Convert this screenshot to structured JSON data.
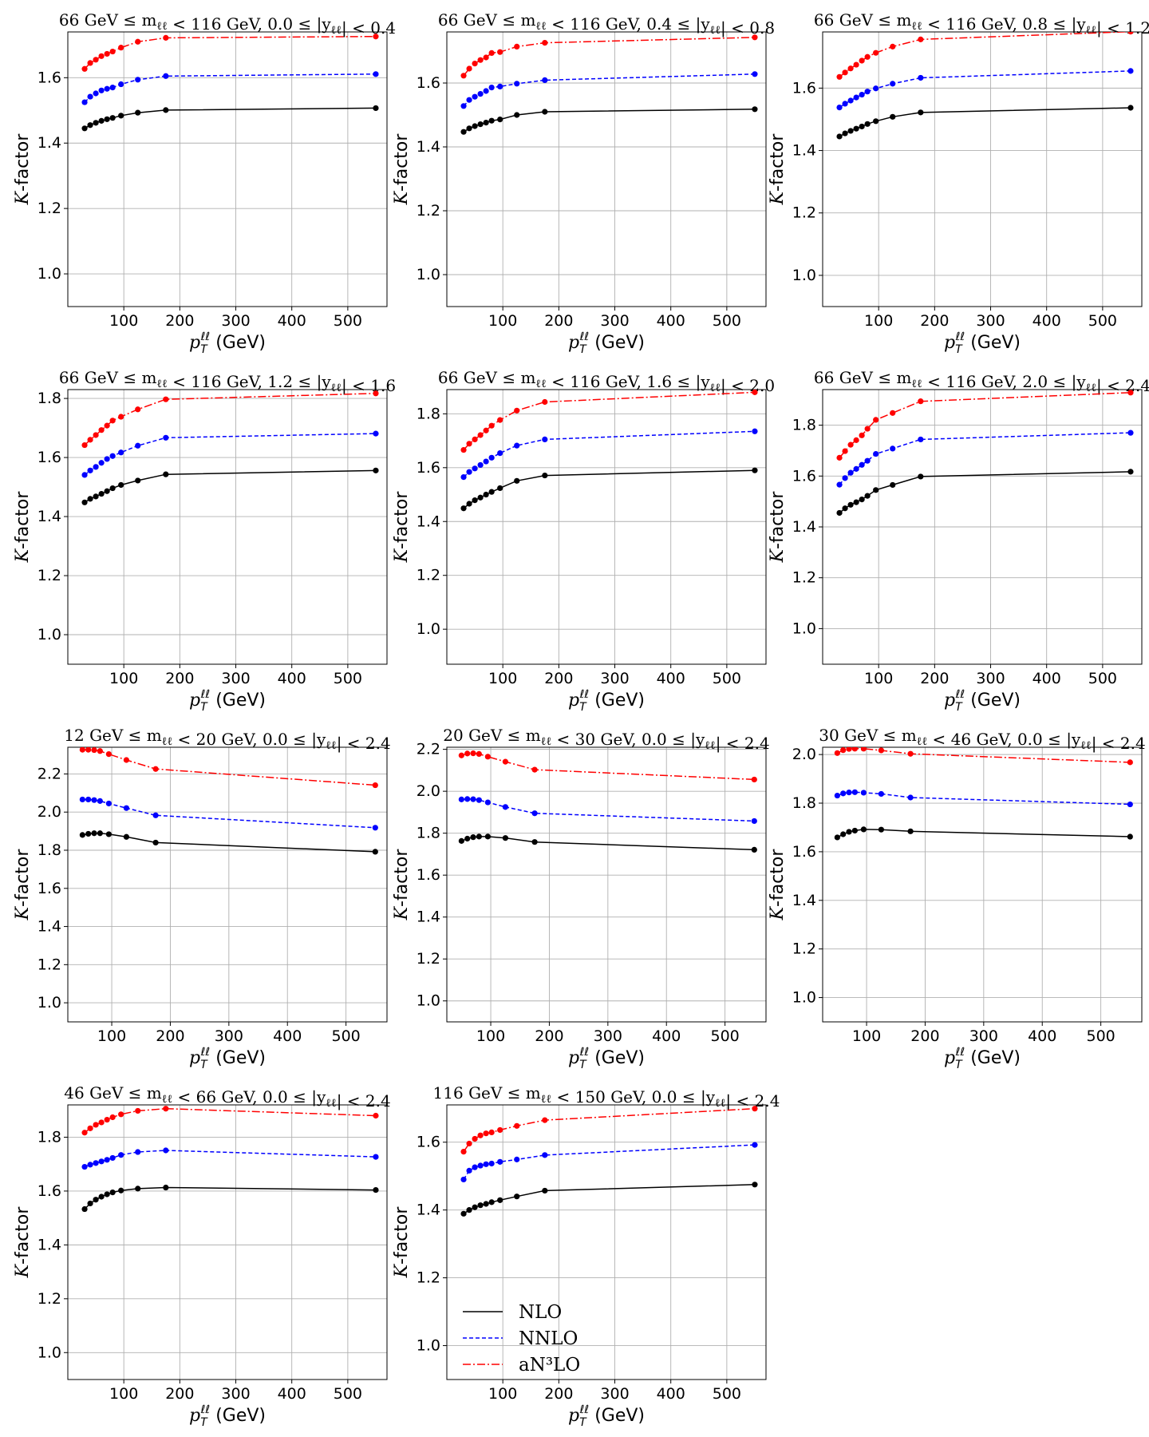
{
  "figure": {
    "xlabel": "p_T^ℓℓ (GeV)",
    "ylabel": "K-factor",
    "legend": {
      "placement": "lower-left of panel 11",
      "entries": [
        {
          "label": "NLO",
          "color": "#000000",
          "style": "solid"
        },
        {
          "label": "NNLO",
          "color": "#0000ff",
          "style": "dashed"
        },
        {
          "label": "aN³LO",
          "color": "#ff0000",
          "style": "dashdot"
        }
      ]
    },
    "colors": {
      "NLO": "#000000",
      "NNLO": "#0000ff",
      "aN3LO": "#ff0000",
      "grid": "#b0b0b0"
    }
  },
  "chart_data": [
    {
      "type": "line",
      "title": "66 GeV ≤ m_ℓℓ < 116 GeV,  0.0 ≤ |y_ℓℓ| < 0.4",
      "xlabel": "p_T^ℓℓ (GeV)",
      "ylabel": "K-factor",
      "grid": true,
      "xlim": [
        0,
        570
      ],
      "ylim": [
        0.9,
        1.74
      ],
      "xticks": [
        100,
        200,
        300,
        400,
        500
      ],
      "yticks": [
        1.0,
        1.2,
        1.4,
        1.6
      ],
      "x": [
        30,
        40,
        50,
        60,
        70,
        80,
        95,
        125,
        175,
        550
      ],
      "series": [
        {
          "name": "NLO",
          "values": [
            1.445,
            1.455,
            1.462,
            1.468,
            1.473,
            1.477,
            1.484,
            1.493,
            1.501,
            1.507
          ]
        },
        {
          "name": "NNLO",
          "values": [
            1.525,
            1.542,
            1.552,
            1.561,
            1.566,
            1.57,
            1.58,
            1.594,
            1.605,
            1.611
          ]
        },
        {
          "name": "aN³LO",
          "values": [
            1.627,
            1.645,
            1.655,
            1.666,
            1.673,
            1.68,
            1.692,
            1.71,
            1.722,
            1.726
          ]
        }
      ]
    },
    {
      "type": "line",
      "title": "66 GeV ≤ m_ℓℓ < 116 GeV,  0.4 ≤ |y_ℓℓ| < 0.8",
      "xlabel": "p_T^ℓℓ (GeV)",
      "ylabel": "K-factor",
      "grid": true,
      "xlim": [
        0,
        570
      ],
      "ylim": [
        0.9,
        1.76
      ],
      "xticks": [
        100,
        200,
        300,
        400,
        500
      ],
      "yticks": [
        1.0,
        1.2,
        1.4,
        1.6
      ],
      "x": [
        30,
        40,
        50,
        60,
        70,
        80,
        95,
        125,
        175,
        550
      ],
      "series": [
        {
          "name": "NLO",
          "values": [
            1.447,
            1.458,
            1.465,
            1.471,
            1.476,
            1.482,
            1.486,
            1.5,
            1.51,
            1.518
          ]
        },
        {
          "name": "NNLO",
          "values": [
            1.528,
            1.547,
            1.557,
            1.566,
            1.575,
            1.586,
            1.589,
            1.598,
            1.609,
            1.628
          ]
        },
        {
          "name": "aN³LO",
          "values": [
            1.623,
            1.645,
            1.661,
            1.672,
            1.68,
            1.694,
            1.697,
            1.714,
            1.726,
            1.743
          ]
        }
      ]
    },
    {
      "type": "line",
      "title": "66 GeV ≤ m_ℓℓ < 116 GeV,  0.8 ≤ |y_ℓℓ| < 1.2",
      "xlabel": "p_T^ℓℓ (GeV)",
      "ylabel": "K-factor",
      "grid": true,
      "xlim": [
        0,
        570
      ],
      "ylim": [
        0.9,
        1.78
      ],
      "xticks": [
        100,
        200,
        300,
        400,
        500
      ],
      "yticks": [
        1.0,
        1.2,
        1.4,
        1.6
      ],
      "x": [
        30,
        40,
        50,
        60,
        70,
        80,
        95,
        125,
        175,
        550
      ],
      "series": [
        {
          "name": "NLO",
          "values": [
            1.445,
            1.455,
            1.463,
            1.47,
            1.477,
            1.485,
            1.494,
            1.508,
            1.522,
            1.537
          ]
        },
        {
          "name": "NNLO",
          "values": [
            1.538,
            1.55,
            1.56,
            1.57,
            1.579,
            1.589,
            1.599,
            1.614,
            1.633,
            1.655
          ]
        },
        {
          "name": "aN³LO",
          "values": [
            1.636,
            1.65,
            1.663,
            1.675,
            1.688,
            1.7,
            1.713,
            1.733,
            1.756,
            1.781
          ]
        }
      ]
    },
    {
      "type": "line",
      "title": "66 GeV ≤ m_ℓℓ < 116 GeV,  1.2 ≤ |y_ℓℓ| < 1.6",
      "xlabel": "p_T^ℓℓ (GeV)",
      "ylabel": "K-factor",
      "grid": true,
      "xlim": [
        0,
        570
      ],
      "ylim": [
        0.9,
        1.83
      ],
      "xticks": [
        100,
        200,
        300,
        400,
        500
      ],
      "yticks": [
        1.0,
        1.2,
        1.4,
        1.6,
        1.8
      ],
      "x": [
        30,
        40,
        50,
        60,
        70,
        80,
        95,
        125,
        175,
        550
      ],
      "series": [
        {
          "name": "NLO",
          "values": [
            1.448,
            1.46,
            1.468,
            1.477,
            1.486,
            1.496,
            1.507,
            1.522,
            1.543,
            1.556
          ]
        },
        {
          "name": "NNLO",
          "values": [
            1.541,
            1.556,
            1.568,
            1.582,
            1.595,
            1.605,
            1.617,
            1.64,
            1.667,
            1.681
          ]
        },
        {
          "name": "aN³LO",
          "values": [
            1.642,
            1.66,
            1.676,
            1.693,
            1.708,
            1.725,
            1.738,
            1.763,
            1.797,
            1.817
          ]
        }
      ]
    },
    {
      "type": "line",
      "title": "66 GeV ≤ m_ℓℓ < 116 GeV,  1.6 ≤ |y_ℓℓ| < 2.0",
      "xlabel": "p_T^ℓℓ (GeV)",
      "ylabel": "K-factor",
      "grid": true,
      "xlim": [
        0,
        570
      ],
      "ylim": [
        0.87,
        1.89
      ],
      "xticks": [
        100,
        200,
        300,
        400,
        500
      ],
      "yticks": [
        1.0,
        1.2,
        1.4,
        1.6,
        1.8
      ],
      "x": [
        30,
        40,
        50,
        60,
        70,
        80,
        95,
        125,
        175,
        550
      ],
      "series": [
        {
          "name": "NLO",
          "values": [
            1.449,
            1.466,
            1.479,
            1.489,
            1.5,
            1.51,
            1.524,
            1.551,
            1.571,
            1.59
          ]
        },
        {
          "name": "NNLO",
          "values": [
            1.565,
            1.584,
            1.597,
            1.61,
            1.623,
            1.637,
            1.654,
            1.682,
            1.705,
            1.735
          ]
        },
        {
          "name": "aN³LO",
          "values": [
            1.666,
            1.689,
            1.705,
            1.721,
            1.738,
            1.756,
            1.777,
            1.812,
            1.844,
            1.88
          ]
        }
      ]
    },
    {
      "type": "line",
      "title": "66 GeV ≤ m_ℓℓ < 116 GeV,  2.0 ≤ |y_ℓℓ| < 2.4",
      "xlabel": "p_T^ℓℓ (GeV)",
      "ylabel": "K-factor",
      "grid": true,
      "xlim": [
        0,
        570
      ],
      "ylim": [
        0.86,
        1.94
      ],
      "xticks": [
        100,
        200,
        300,
        400,
        500
      ],
      "yticks": [
        1.0,
        1.2,
        1.4,
        1.6,
        1.8
      ],
      "x": [
        30,
        40,
        50,
        60,
        70,
        80,
        95,
        125,
        175,
        550
      ],
      "series": [
        {
          "name": "NLO",
          "values": [
            1.455,
            1.473,
            1.487,
            1.497,
            1.508,
            1.522,
            1.545,
            1.565,
            1.598,
            1.617
          ]
        },
        {
          "name": "NNLO",
          "values": [
            1.566,
            1.592,
            1.613,
            1.628,
            1.644,
            1.66,
            1.687,
            1.708,
            1.744,
            1.77
          ]
        },
        {
          "name": "aN³LO",
          "values": [
            1.672,
            1.698,
            1.723,
            1.741,
            1.76,
            1.786,
            1.821,
            1.848,
            1.894,
            1.928
          ]
        }
      ]
    },
    {
      "type": "line",
      "title": "12 GeV ≤ m_ℓℓ < 20 GeV,  0.0 ≤ |y_ℓℓ| < 2.4",
      "xlabel": "p_T^ℓℓ (GeV)",
      "ylabel": "K-factor",
      "grid": true,
      "xlim": [
        25,
        570
      ],
      "ylim": [
        0.9,
        2.34
      ],
      "xticks": [
        100,
        200,
        300,
        400,
        500
      ],
      "yticks": [
        1.0,
        1.2,
        1.4,
        1.6,
        1.8,
        2.0,
        2.2
      ],
      "x": [
        50,
        60,
        70,
        80,
        95,
        125,
        175,
        550
      ],
      "series": [
        {
          "name": "NLO",
          "values": [
            1.88,
            1.886,
            1.889,
            1.889,
            1.884,
            1.87,
            1.84,
            1.792
          ]
        },
        {
          "name": "NNLO",
          "values": [
            2.066,
            2.066,
            2.063,
            2.058,
            2.045,
            2.021,
            1.983,
            1.918
          ]
        },
        {
          "name": "aN³LO",
          "values": [
            2.327,
            2.327,
            2.325,
            2.32,
            2.304,
            2.273,
            2.226,
            2.141
          ]
        }
      ]
    },
    {
      "type": "line",
      "title": "20 GeV ≤ m_ℓℓ < 30 GeV,  0.0 ≤ |y_ℓℓ| < 2.4",
      "xlabel": "p_T^ℓℓ (GeV)",
      "ylabel": "K-factor",
      "grid": true,
      "xlim": [
        25,
        570
      ],
      "ylim": [
        0.9,
        2.21
      ],
      "xticks": [
        100,
        200,
        300,
        400,
        500
      ],
      "yticks": [
        1.0,
        1.2,
        1.4,
        1.6,
        1.8,
        2.0,
        2.2
      ],
      "x": [
        50,
        60,
        70,
        80,
        95,
        125,
        175,
        550
      ],
      "series": [
        {
          "name": "NLO",
          "values": [
            1.763,
            1.774,
            1.781,
            1.784,
            1.784,
            1.777,
            1.758,
            1.721
          ]
        },
        {
          "name": "NNLO",
          "values": [
            1.961,
            1.963,
            1.962,
            1.958,
            1.947,
            1.925,
            1.895,
            1.858
          ]
        },
        {
          "name": "aN³LO",
          "values": [
            2.171,
            2.18,
            2.181,
            2.178,
            2.165,
            2.141,
            2.103,
            2.056
          ]
        }
      ]
    },
    {
      "type": "line",
      "title": "30 GeV ≤ m_ℓℓ < 46 GeV,  0.0 ≤ |y_ℓℓ| < 2.4",
      "xlabel": "p_T^ℓℓ (GeV)",
      "ylabel": "K-factor",
      "grid": true,
      "xlim": [
        25,
        570
      ],
      "ylim": [
        0.9,
        2.03
      ],
      "xticks": [
        100,
        200,
        300,
        400,
        500
      ],
      "yticks": [
        1.0,
        1.2,
        1.4,
        1.6,
        1.8,
        2.0
      ],
      "x": [
        50,
        60,
        70,
        80,
        95,
        125,
        175,
        550
      ],
      "series": [
        {
          "name": "NLO",
          "values": [
            1.659,
            1.672,
            1.682,
            1.687,
            1.692,
            1.691,
            1.684,
            1.662
          ]
        },
        {
          "name": "NNLO",
          "values": [
            1.831,
            1.84,
            1.844,
            1.845,
            1.843,
            1.838,
            1.823,
            1.795
          ]
        },
        {
          "name": "aN³LO",
          "values": [
            2.006,
            2.018,
            2.023,
            2.024,
            2.024,
            2.017,
            2.003,
            1.968
          ]
        }
      ]
    },
    {
      "type": "line",
      "title": "46 GeV ≤ m_ℓℓ < 66 GeV,  0.0 ≤ |y_ℓℓ| < 2.4",
      "xlabel": "p_T^ℓℓ (GeV)",
      "ylabel": "K-factor",
      "grid": true,
      "xlim": [
        0,
        570
      ],
      "ylim": [
        0.9,
        1.92
      ],
      "xticks": [
        100,
        200,
        300,
        400,
        500
      ],
      "yticks": [
        1.0,
        1.2,
        1.4,
        1.6,
        1.8
      ],
      "x": [
        30,
        40,
        50,
        60,
        70,
        80,
        95,
        125,
        175,
        550
      ],
      "series": [
        {
          "name": "NLO",
          "values": [
            1.533,
            1.554,
            1.568,
            1.579,
            1.588,
            1.595,
            1.602,
            1.609,
            1.613,
            1.604
          ]
        },
        {
          "name": "NNLO",
          "values": [
            1.69,
            1.698,
            1.704,
            1.71,
            1.716,
            1.723,
            1.734,
            1.745,
            1.751,
            1.727
          ]
        },
        {
          "name": "aN³LO",
          "values": [
            1.817,
            1.833,
            1.846,
            1.855,
            1.865,
            1.874,
            1.885,
            1.898,
            1.906,
            1.88
          ]
        }
      ]
    },
    {
      "type": "line",
      "title": "116 GeV ≤ m_ℓℓ < 150 GeV,  0.0 ≤ |y_ℓℓ| < 2.4",
      "xlabel": "p_T^ℓℓ (GeV)",
      "ylabel": "K-factor",
      "grid": true,
      "xlim": [
        0,
        570
      ],
      "ylim": [
        0.9,
        1.71
      ],
      "xticks": [
        100,
        200,
        300,
        400,
        500
      ],
      "yticks": [
        1.0,
        1.2,
        1.4,
        1.6
      ],
      "x": [
        30,
        40,
        50,
        60,
        70,
        80,
        95,
        125,
        175,
        550
      ],
      "series": [
        {
          "name": "NLO",
          "values": [
            1.389,
            1.4,
            1.408,
            1.414,
            1.418,
            1.423,
            1.429,
            1.44,
            1.457,
            1.475
          ]
        },
        {
          "name": "NNLO",
          "values": [
            1.49,
            1.516,
            1.526,
            1.531,
            1.535,
            1.537,
            1.542,
            1.549,
            1.562,
            1.592
          ]
        },
        {
          "name": "aN³LO",
          "values": [
            1.572,
            1.596,
            1.61,
            1.62,
            1.626,
            1.629,
            1.636,
            1.648,
            1.665,
            1.699
          ]
        }
      ]
    }
  ]
}
